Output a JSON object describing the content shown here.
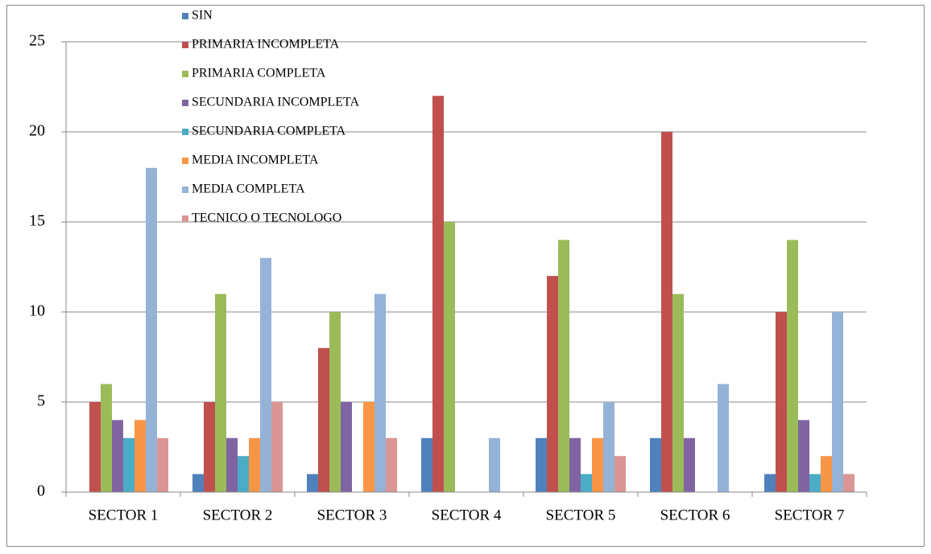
{
  "chart_data": {
    "type": "bar",
    "categories": [
      "SECTOR 1",
      "SECTOR 2",
      "SECTOR 3",
      "SECTOR 4",
      "SECTOR 5",
      "SECTOR 6",
      "SECTOR 7"
    ],
    "series": [
      {
        "name": "SIN",
        "color": "#4f81bd",
        "values": [
          0,
          1,
          1,
          3,
          3,
          3,
          1
        ]
      },
      {
        "name": "PRIMARIA INCOMPLETA",
        "color": "#c0504d",
        "values": [
          5,
          5,
          8,
          22,
          12,
          20,
          10
        ]
      },
      {
        "name": "PRIMARIA COMPLETA",
        "color": "#9bbb59",
        "values": [
          6,
          11,
          10,
          15,
          14,
          11,
          14
        ]
      },
      {
        "name": "SECUNDARIA INCOMPLETA",
        "color": "#8064a2",
        "values": [
          4,
          3,
          5,
          0,
          3,
          3,
          4
        ]
      },
      {
        "name": "SECUNDARIA COMPLETA",
        "color": "#4bacc6",
        "values": [
          3,
          2,
          0,
          0,
          1,
          0,
          1
        ]
      },
      {
        "name": "MEDIA INCOMPLETA",
        "color": "#f79646",
        "values": [
          4,
          3,
          5,
          0,
          3,
          0,
          2
        ]
      },
      {
        "name": "MEDIA COMPLETA",
        "color": "#95b3d7",
        "values": [
          18,
          13,
          11,
          3,
          5,
          6,
          10
        ]
      },
      {
        "name": "TECNICO O TECNOLOGO",
        "color": "#d99694",
        "values": [
          3,
          5,
          3,
          0,
          2,
          0,
          1
        ]
      }
    ],
    "ylim": [
      0,
      25
    ],
    "yticks": [
      0,
      5,
      10,
      15,
      20,
      25
    ],
    "grid": true,
    "legend": "top-left"
  }
}
